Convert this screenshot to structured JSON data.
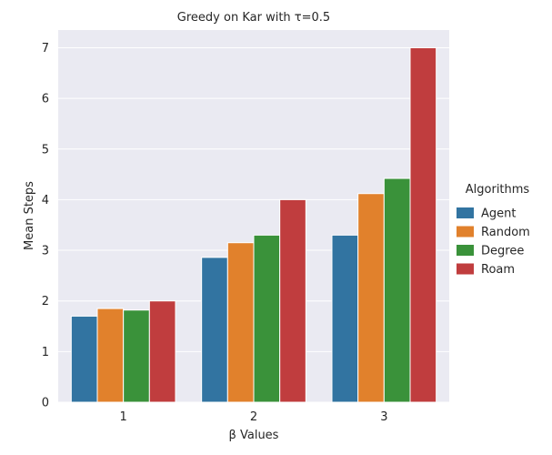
{
  "chart_data": {
    "type": "bar",
    "title": "Greedy on Kar with τ=0.5",
    "xlabel": "β Values",
    "ylabel": "Mean Steps",
    "categories": [
      "1",
      "2",
      "3"
    ],
    "ylim": [
      0,
      7.35
    ],
    "yticks": [
      0,
      1,
      2,
      3,
      4,
      5,
      6,
      7
    ],
    "grid": true,
    "legend": {
      "title": "Algorithms",
      "placement": "right"
    },
    "series": [
      {
        "name": "Agent",
        "color": "#3274a1",
        "values": [
          1.7,
          2.86,
          3.3
        ]
      },
      {
        "name": "Random",
        "color": "#e1812c",
        "values": [
          1.85,
          3.15,
          4.12
        ]
      },
      {
        "name": "Degree",
        "color": "#3a923a",
        "values": [
          1.82,
          3.3,
          4.42
        ]
      },
      {
        "name": "Roam",
        "color": "#c03d3e",
        "values": [
          2.0,
          4.0,
          7.0
        ]
      }
    ]
  }
}
